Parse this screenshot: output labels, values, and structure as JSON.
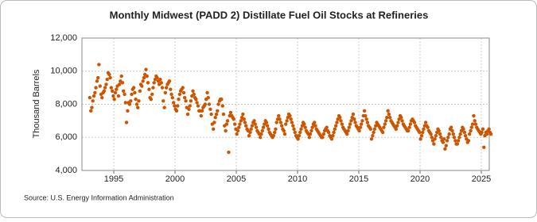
{
  "chart_data": {
    "type": "scatter",
    "title": "Monthly Midwest (PADD 2) Distillate Fuel Oil Stocks at Refineries",
    "y_label": "Thousand Barrels",
    "source": "Source: U.S. Energy Information Administration",
    "color": "#cc5500",
    "grid": true,
    "xlim": [
      1992.4,
      2025.65
    ],
    "ylim": [
      4000,
      12000
    ],
    "xticks": [
      1995,
      2000,
      2005,
      2010,
      2015,
      2020,
      2025
    ],
    "yticks": [
      {
        "value": 4000,
        "label": "4,000"
      },
      {
        "value": 6000,
        "label": "6,000"
      },
      {
        "value": 8000,
        "label": "8,000"
      },
      {
        "value": 10000,
        "label": "10,000"
      },
      {
        "value": 12000,
        "label": "12,000"
      }
    ],
    "x": [
      1993.04,
      1993.13,
      1993.21,
      1993.29,
      1993.38,
      1993.46,
      1993.54,
      1993.63,
      1993.71,
      1993.79,
      1993.88,
      1993.96,
      1994.04,
      1994.13,
      1994.21,
      1994.29,
      1994.38,
      1994.46,
      1994.54,
      1994.63,
      1994.71,
      1994.79,
      1994.88,
      1994.96,
      1995.04,
      1995.13,
      1995.21,
      1995.29,
      1995.38,
      1995.46,
      1995.54,
      1995.63,
      1995.71,
      1995.79,
      1995.88,
      1995.96,
      1996.04,
      1996.13,
      1996.21,
      1996.29,
      1996.38,
      1996.46,
      1996.54,
      1996.63,
      1996.71,
      1996.79,
      1996.88,
      1996.96,
      1997.04,
      1997.13,
      1997.21,
      1997.29,
      1997.38,
      1997.46,
      1997.54,
      1997.63,
      1997.71,
      1997.79,
      1997.88,
      1997.96,
      1998.04,
      1998.13,
      1998.21,
      1998.29,
      1998.38,
      1998.46,
      1998.54,
      1998.63,
      1998.71,
      1998.79,
      1998.88,
      1998.96,
      1999.04,
      1999.13,
      1999.21,
      1999.29,
      1999.38,
      1999.46,
      1999.54,
      1999.63,
      1999.71,
      1999.79,
      1999.88,
      1999.96,
      2000.04,
      2000.13,
      2000.21,
      2000.29,
      2000.38,
      2000.46,
      2000.54,
      2000.63,
      2000.71,
      2000.79,
      2000.88,
      2000.96,
      2001.04,
      2001.13,
      2001.21,
      2001.29,
      2001.38,
      2001.46,
      2001.54,
      2001.63,
      2001.71,
      2001.79,
      2001.88,
      2001.96,
      2002.04,
      2002.13,
      2002.21,
      2002.29,
      2002.38,
      2002.46,
      2002.54,
      2002.63,
      2002.71,
      2002.79,
      2002.88,
      2002.96,
      2003.04,
      2003.13,
      2003.21,
      2003.29,
      2003.38,
      2003.46,
      2003.54,
      2003.63,
      2003.71,
      2003.79,
      2003.88,
      2003.96,
      2004.04,
      2004.13,
      2004.21,
      2004.29,
      2004.38,
      2004.46,
      2004.54,
      2004.63,
      2004.71,
      2004.79,
      2004.88,
      2004.96,
      2005.04,
      2005.13,
      2005.21,
      2005.29,
      2005.38,
      2005.46,
      2005.54,
      2005.63,
      2005.71,
      2005.79,
      2005.88,
      2005.96,
      2006.04,
      2006.13,
      2006.21,
      2006.29,
      2006.38,
      2006.46,
      2006.54,
      2006.63,
      2006.71,
      2006.79,
      2006.88,
      2006.96,
      2007.04,
      2007.13,
      2007.21,
      2007.29,
      2007.38,
      2007.46,
      2007.54,
      2007.63,
      2007.71,
      2007.79,
      2007.88,
      2007.96,
      2008.04,
      2008.13,
      2008.21,
      2008.29,
      2008.38,
      2008.46,
      2008.54,
      2008.63,
      2008.71,
      2008.79,
      2008.88,
      2008.96,
      2009.04,
      2009.13,
      2009.21,
      2009.29,
      2009.38,
      2009.46,
      2009.54,
      2009.63,
      2009.71,
      2009.79,
      2009.88,
      2009.96,
      2010.04,
      2010.13,
      2010.21,
      2010.29,
      2010.38,
      2010.46,
      2010.54,
      2010.63,
      2010.71,
      2010.79,
      2010.88,
      2010.96,
      2011.04,
      2011.13,
      2011.21,
      2011.29,
      2011.38,
      2011.46,
      2011.54,
      2011.63,
      2011.71,
      2011.79,
      2011.88,
      2011.96,
      2012.04,
      2012.13,
      2012.21,
      2012.29,
      2012.38,
      2012.46,
      2012.54,
      2012.63,
      2012.71,
      2012.79,
      2012.88,
      2012.96,
      2013.04,
      2013.13,
      2013.21,
      2013.29,
      2013.38,
      2013.46,
      2013.54,
      2013.63,
      2013.71,
      2013.79,
      2013.88,
      2013.96,
      2014.04,
      2014.13,
      2014.21,
      2014.29,
      2014.38,
      2014.46,
      2014.54,
      2014.63,
      2014.71,
      2014.79,
      2014.88,
      2014.96,
      2015.04,
      2015.13,
      2015.21,
      2015.29,
      2015.38,
      2015.46,
      2015.54,
      2015.63,
      2015.71,
      2015.79,
      2015.88,
      2015.96,
      2016.04,
      2016.13,
      2016.21,
      2016.29,
      2016.38,
      2016.46,
      2016.54,
      2016.63,
      2016.71,
      2016.79,
      2016.88,
      2016.96,
      2017.04,
      2017.13,
      2017.21,
      2017.29,
      2017.38,
      2017.46,
      2017.54,
      2017.63,
      2017.71,
      2017.79,
      2017.88,
      2017.96,
      2018.04,
      2018.13,
      2018.21,
      2018.29,
      2018.38,
      2018.46,
      2018.54,
      2018.63,
      2018.71,
      2018.79,
      2018.88,
      2018.96,
      2019.04,
      2019.13,
      2019.21,
      2019.29,
      2019.38,
      2019.46,
      2019.54,
      2019.63,
      2019.71,
      2019.79,
      2019.88,
      2019.96,
      2020.04,
      2020.13,
      2020.21,
      2020.29,
      2020.38,
      2020.46,
      2020.54,
      2020.63,
      2020.71,
      2020.79,
      2020.88,
      2020.96,
      2021.04,
      2021.13,
      2021.21,
      2021.29,
      2021.38,
      2021.46,
      2021.54,
      2021.63,
      2021.71,
      2021.79,
      2021.88,
      2021.96,
      2022.04,
      2022.13,
      2022.21,
      2022.29,
      2022.38,
      2022.46,
      2022.54,
      2022.63,
      2022.71,
      2022.79,
      2022.88,
      2022.96,
      2023.04,
      2023.13,
      2023.21,
      2023.29,
      2023.38,
      2023.46,
      2023.54,
      2023.63,
      2023.71,
      2023.79,
      2023.88,
      2023.96,
      2024.04,
      2024.13,
      2024.21,
      2024.29,
      2024.38,
      2024.46,
      2024.54,
      2024.63,
      2024.71,
      2024.79,
      2024.88,
      2024.96,
      2025.04,
      2025.13,
      2025.21,
      2025.29,
      2025.38,
      2025.46,
      2025.54,
      2025.63,
      2025.71,
      2025.79
    ],
    "values": [
      8400,
      7600,
      7800,
      8200,
      8500,
      8700,
      9000,
      9400,
      9600,
      10400,
      9100,
      8600,
      8400,
      8700,
      8800,
      9000,
      9200,
      9500,
      9900,
      9800,
      9600,
      9000,
      8800,
      8500,
      8300,
      8700,
      8900,
      9100,
      8500,
      9200,
      9400,
      9700,
      9300,
      8800,
      8600,
      8100,
      6900,
      7600,
      8100,
      8000,
      8200,
      8600,
      8900,
      9000,
      8700,
      8300,
      8000,
      7800,
      8200,
      8800,
      9200,
      9100,
      9400,
      9600,
      9800,
      10100,
      9700,
      9300,
      8900,
      8400,
      8300,
      8600,
      9000,
      9300,
      9500,
      9700,
      9600,
      9400,
      9200,
      9500,
      9300,
      9000,
      8200,
      7800,
      8700,
      9000,
      9200,
      9300,
      9400,
      8900,
      8600,
      8400,
      8100,
      7900,
      7700,
      7600,
      7900,
      8300,
      8600,
      8800,
      8900,
      9000,
      8700,
      8400,
      8200,
      7800,
      7400,
      7700,
      7900,
      8200,
      8500,
      8800,
      8600,
      8400,
      8300,
      8100,
      7900,
      7600,
      7600,
      7300,
      7600,
      7800,
      7900,
      8000,
      8300,
      8700,
      8400,
      8000,
      7700,
      7400,
      6800,
      6500,
      6900,
      7200,
      7400,
      7600,
      8000,
      8200,
      8300,
      8300,
      7900,
      7400,
      6700,
      6400,
      6800,
      7000,
      5100,
      7300,
      7500,
      7300,
      7200,
      7100,
      6800,
      6500,
      6200,
      6400,
      6600,
      6800,
      7000,
      7200,
      7400,
      7100,
      6900,
      6700,
      6500,
      6400,
      6100,
      6300,
      6500,
      6700,
      6900,
      7000,
      6800,
      6600,
      6400,
      6300,
      6200,
      6000,
      6200,
      6400,
      6600,
      6800,
      7000,
      6900,
      6700,
      6500,
      6300,
      6200,
      6100,
      6000,
      6100,
      6300,
      6500,
      6900,
      7100,
      7300,
      7100,
      6900,
      6700,
      6500,
      6400,
      6200,
      6800,
      7000,
      7200,
      7400,
      7300,
      7100,
      6900,
      6700,
      6500,
      6300,
      6100,
      6000,
      5900,
      6100,
      6300,
      6500,
      6700,
      6900,
      6800,
      6600,
      6400,
      6300,
      6200,
      6000,
      6200,
      6400,
      6600,
      6800,
      6900,
      6700,
      6500,
      6400,
      6300,
      6200,
      6100,
      6000,
      6000,
      6200,
      6400,
      6500,
      6600,
      6400,
      6300,
      6100,
      6000,
      5900,
      6100,
      6300,
      6500,
      6700,
      6900,
      7100,
      7300,
      7200,
      7000,
      6800,
      6600,
      6500,
      6400,
      6300,
      6200,
      6400,
      6600,
      6800,
      7000,
      7200,
      7400,
      7100,
      6900,
      6700,
      6600,
      6500,
      6400,
      6600,
      6800,
      7000,
      7300,
      7600,
      7300,
      7100,
      6900,
      6700,
      6600,
      6500,
      5900,
      6100,
      6300,
      6500,
      6700,
      6900,
      6800,
      6700,
      6600,
      6500,
      6400,
      6300,
      6600,
      6800,
      7000,
      7200,
      7600,
      7400,
      7200,
      7000,
      6900,
      6800,
      6700,
      6600,
      6500,
      6700,
      6900,
      7100,
      7300,
      7200,
      7000,
      6800,
      6700,
      6600,
      6500,
      6400,
      6400,
      6600,
      6800,
      7000,
      7100,
      7000,
      6900,
      6700,
      6600,
      6500,
      6400,
      6300,
      5900,
      6100,
      6300,
      6500,
      6700,
      6900,
      6700,
      6600,
      6400,
      6300,
      6200,
      6000,
      5800,
      5600,
      5900,
      6100,
      6300,
      6500,
      6400,
      6200,
      6000,
      5800,
      5700,
      5900,
      5300,
      5500,
      5800,
      6000,
      6200,
      6500,
      6600,
      6400,
      6200,
      6000,
      5800,
      5600,
      5600,
      5800,
      6000,
      6200,
      6400,
      6600,
      6500,
      6300,
      6100,
      5900,
      5700,
      5800,
      6200,
      6400,
      6600,
      6800,
      7300,
      7000,
      6800,
      6600,
      6500,
      6400,
      6300,
      6200,
      6300,
      6500,
      5400,
      6100,
      6300,
      6200,
      6400,
      6500,
      6300,
      6200
    ]
  }
}
